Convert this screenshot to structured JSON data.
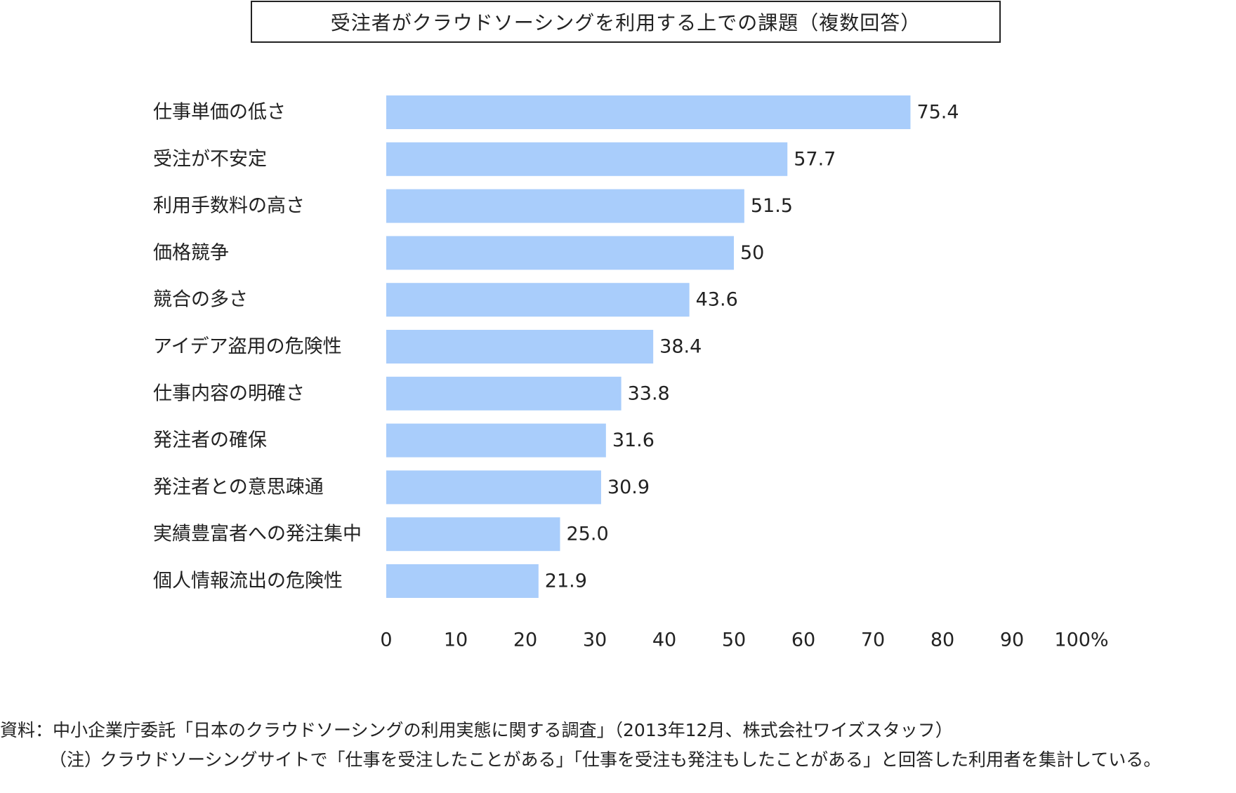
{
  "chart_data": {
    "type": "bar",
    "orientation": "horizontal",
    "title": "受注者がクラウドソーシングを利用する上での課題（複数回答）",
    "categories": [
      "仕事単価の低さ",
      "受注が不安定",
      "利用手数料の高さ",
      "価格競争",
      "競合の多さ",
      "アイデア盗用の危険性",
      "仕事内容の明確さ",
      "発注者の確保",
      "発注者との意思疎通",
      "実績豊富者への発注集中",
      "個人情報流出の危険性"
    ],
    "values": [
      75.4,
      57.7,
      51.5,
      50,
      43.6,
      38.4,
      33.8,
      31.6,
      30.9,
      25.0,
      21.9
    ],
    "value_labels": [
      "75.4",
      "57.7",
      "51.5",
      "50",
      "43.6",
      "38.4",
      "33.8",
      "31.6",
      "30.9",
      "25.0",
      "21.9"
    ],
    "xlim": [
      0,
      100
    ],
    "xticks": [
      "0",
      "10",
      "20",
      "30",
      "40",
      "50",
      "60",
      "70",
      "80",
      "90",
      "100%"
    ],
    "xlabel": "",
    "ylabel": "",
    "grid": false,
    "bar_color": "#a9cdfb"
  },
  "footer": {
    "source": "資料：中小企業庁委託「日本のクラウドソーシングの利用実態に関する調査」（2013年12月、株式会社ワイズスタッフ）",
    "note_mark": "（注）",
    "note_text": "クラウドソーシングサイトで「仕事を受注したことがある」「仕事を受注も発注もしたことがある」と回答した利用者を集計している。"
  }
}
